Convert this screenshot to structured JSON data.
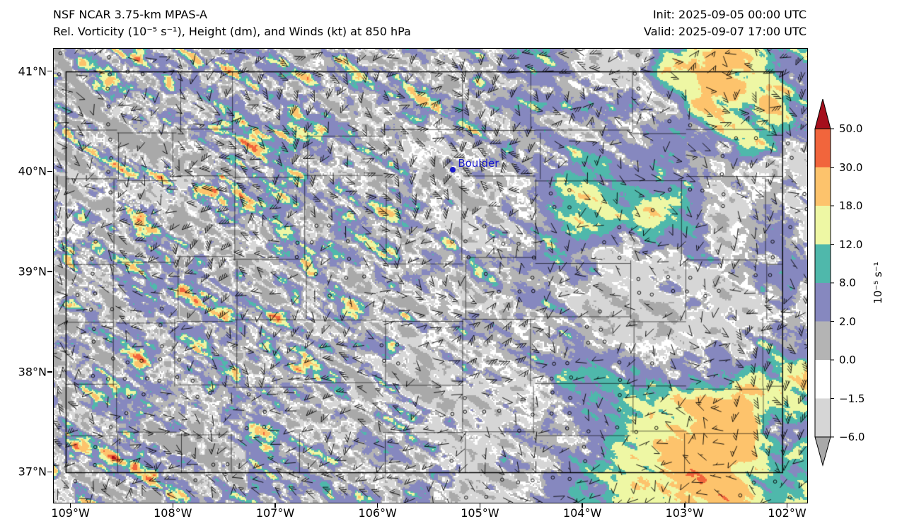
{
  "header": {
    "title_line1": "NSF NCAR 3.75-km MPAS-A",
    "title_line2": "Rel. Vorticity (10⁻⁵ s⁻¹), Height (dm), and Winds (kt) at 850 hPa",
    "init_label": "Init: 2025-09-05 00:00 UTC",
    "valid_label": "Valid: 2025-09-07 17:00 UTC"
  },
  "chart_data": {
    "type": "heatmap",
    "model": "NSF NCAR 3.75-km MPAS-A",
    "variable": "Relative Vorticity",
    "units": "10⁻⁵ s⁻¹",
    "level": "850 hPa",
    "init_time": "2025-09-05 00:00 UTC",
    "valid_time": "2025-09-07 17:00 UTC",
    "overlays": [
      "wind barbs (kt)",
      "height contours (dm)",
      "county boundaries",
      "state border"
    ],
    "x_axis": {
      "tick_labels": [
        "109°W",
        "108°W",
        "107°W",
        "106°W",
        "105°W",
        "104°W",
        "103°W",
        "102°W"
      ],
      "values": [
        -109,
        -108,
        -107,
        -106,
        -105,
        -104,
        -103,
        -102
      ]
    },
    "y_axis": {
      "tick_labels": [
        "41°N",
        "40°N",
        "39°N",
        "38°N",
        "37°N"
      ],
      "values": [
        41,
        40,
        39,
        38,
        37
      ]
    },
    "extent": {
      "lon_min": -109.17,
      "lon_max": -101.81,
      "lat_min": 36.7,
      "lat_max": 41.23
    },
    "colorbar": {
      "label": "10⁻⁵ s⁻¹",
      "tick_labels": [
        "50.0",
        "30.0",
        "18.0",
        "12.0",
        "8.0",
        "2.0",
        "0.0",
        "−1.5",
        "−6.0"
      ],
      "levels": [
        -6.0,
        -1.5,
        0.0,
        2.0,
        8.0,
        12.0,
        18.0,
        30.0,
        50.0
      ],
      "colors_low_to_high": [
        "#a9a9a9",
        "#d6d6d6",
        "#ffffff",
        "#b4b4b4",
        "#8688bf",
        "#4fb8ab",
        "#eef7a4",
        "#fdc36c",
        "#f1653c",
        "#a50f1c"
      ],
      "extend": "both"
    },
    "annotations": [
      {
        "name": "Boulder",
        "lon": -105.27,
        "lat": 40.02,
        "color": "#1a1acd"
      }
    ]
  }
}
